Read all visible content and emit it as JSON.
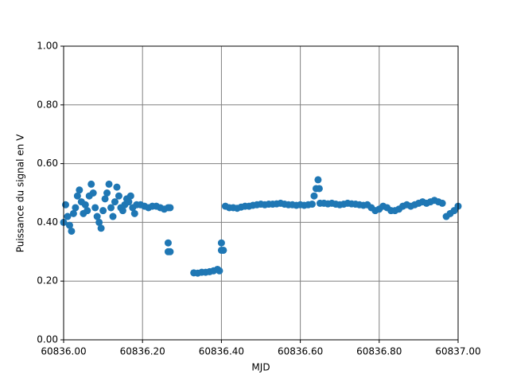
{
  "chart_data": {
    "type": "scatter",
    "xlabel": "MJD",
    "ylabel": "Puissance du signal en V",
    "color": "#1f77b4",
    "grid": true,
    "xlim": [
      60836,
      60837
    ],
    "xticks": [
      {
        "value": 60836,
        "label": "60836.00"
      },
      {
        "value": 60836.2,
        "label": "60836.20"
      },
      {
        "value": 60836.4,
        "label": "60836.40"
      },
      {
        "value": 60836.6,
        "label": "60836.60"
      },
      {
        "value": 60836.8,
        "label": "60836.80"
      },
      {
        "value": 60837,
        "label": "60837.00"
      }
    ],
    "ylim": [
      0,
      1
    ],
    "yticks": [
      {
        "value": 0,
        "label": "0.00"
      },
      {
        "value": 0.2,
        "label": "0.20"
      },
      {
        "value": 0.4,
        "label": "0.40"
      },
      {
        "value": 0.6,
        "label": "0.60"
      },
      {
        "value": 0.8,
        "label": "0.80"
      },
      {
        "value": 1,
        "label": "1.00"
      }
    ],
    "x": [
      60836.0,
      60836.005,
      60836.01,
      60836.015,
      60836.02,
      60836.025,
      60836.03,
      60836.035,
      60836.04,
      60836.045,
      60836.05,
      60836.055,
      60836.06,
      60836.065,
      60836.07,
      60836.075,
      60836.08,
      60836.085,
      60836.09,
      60836.095,
      60836.1,
      60836.105,
      60836.11,
      60836.115,
      60836.12,
      60836.125,
      60836.13,
      60836.135,
      60836.14,
      60836.145,
      60836.15,
      60836.155,
      60836.16,
      60836.165,
      60836.17,
      60836.175,
      60836.18,
      60836.185,
      60836.195,
      60836.205,
      60836.215,
      60836.225,
      60836.235,
      60836.245,
      60836.255,
      60836.265,
      60836.27,
      60836.265,
      60836.265,
      60836.27,
      60836.33,
      60836.34,
      60836.35,
      60836.36,
      60836.37,
      60836.38,
      60836.39,
      60836.395,
      60836.4,
      60836.405,
      60836.4,
      60836.41,
      60836.42,
      60836.43,
      60836.44,
      60836.45,
      60836.46,
      60836.47,
      60836.48,
      60836.49,
      60836.5,
      60836.51,
      60836.52,
      60836.53,
      60836.54,
      60836.55,
      60836.56,
      60836.57,
      60836.58,
      60836.59,
      60836.6,
      60836.61,
      60836.62,
      60836.63,
      60836.635,
      60836.64,
      60836.645,
      60836.648,
      60836.65,
      60836.66,
      60836.67,
      60836.68,
      60836.69,
      60836.7,
      60836.71,
      60836.72,
      60836.73,
      60836.74,
      60836.75,
      60836.76,
      60836.77,
      60836.78,
      60836.79,
      60836.8,
      60836.81,
      60836.82,
      60836.83,
      60836.84,
      60836.85,
      60836.86,
      60836.87,
      60836.88,
      60836.89,
      60836.9,
      60836.91,
      60836.92,
      60836.93,
      60836.94,
      60836.95,
      60836.96,
      60836.97,
      60836.98,
      60836.99,
      60837.0
    ],
    "values": [
      0.4,
      0.46,
      0.42,
      0.39,
      0.37,
      0.43,
      0.45,
      0.49,
      0.51,
      0.47,
      0.43,
      0.46,
      0.44,
      0.49,
      0.53,
      0.5,
      0.45,
      0.42,
      0.4,
      0.38,
      0.44,
      0.48,
      0.5,
      0.53,
      0.45,
      0.42,
      0.47,
      0.52,
      0.49,
      0.45,
      0.44,
      0.46,
      0.48,
      0.47,
      0.49,
      0.45,
      0.43,
      0.46,
      0.46,
      0.455,
      0.45,
      0.455,
      0.455,
      0.45,
      0.445,
      0.45,
      0.45,
      0.33,
      0.3,
      0.3,
      0.228,
      0.227,
      0.23,
      0.23,
      0.232,
      0.235,
      0.24,
      0.235,
      0.33,
      0.305,
      0.305,
      0.455,
      0.45,
      0.45,
      0.448,
      0.452,
      0.455,
      0.455,
      0.458,
      0.46,
      0.462,
      0.46,
      0.462,
      0.462,
      0.463,
      0.465,
      0.462,
      0.46,
      0.46,
      0.458,
      0.46,
      0.458,
      0.46,
      0.462,
      0.49,
      0.515,
      0.545,
      0.515,
      0.465,
      0.465,
      0.463,
      0.465,
      0.462,
      0.46,
      0.462,
      0.465,
      0.463,
      0.462,
      0.46,
      0.458,
      0.46,
      0.45,
      0.44,
      0.445,
      0.455,
      0.45,
      0.44,
      0.44,
      0.445,
      0.455,
      0.46,
      0.455,
      0.46,
      0.465,
      0.47,
      0.465,
      0.47,
      0.475,
      0.47,
      0.465,
      0.42,
      0.43,
      0.44,
      0.455
    ]
  }
}
